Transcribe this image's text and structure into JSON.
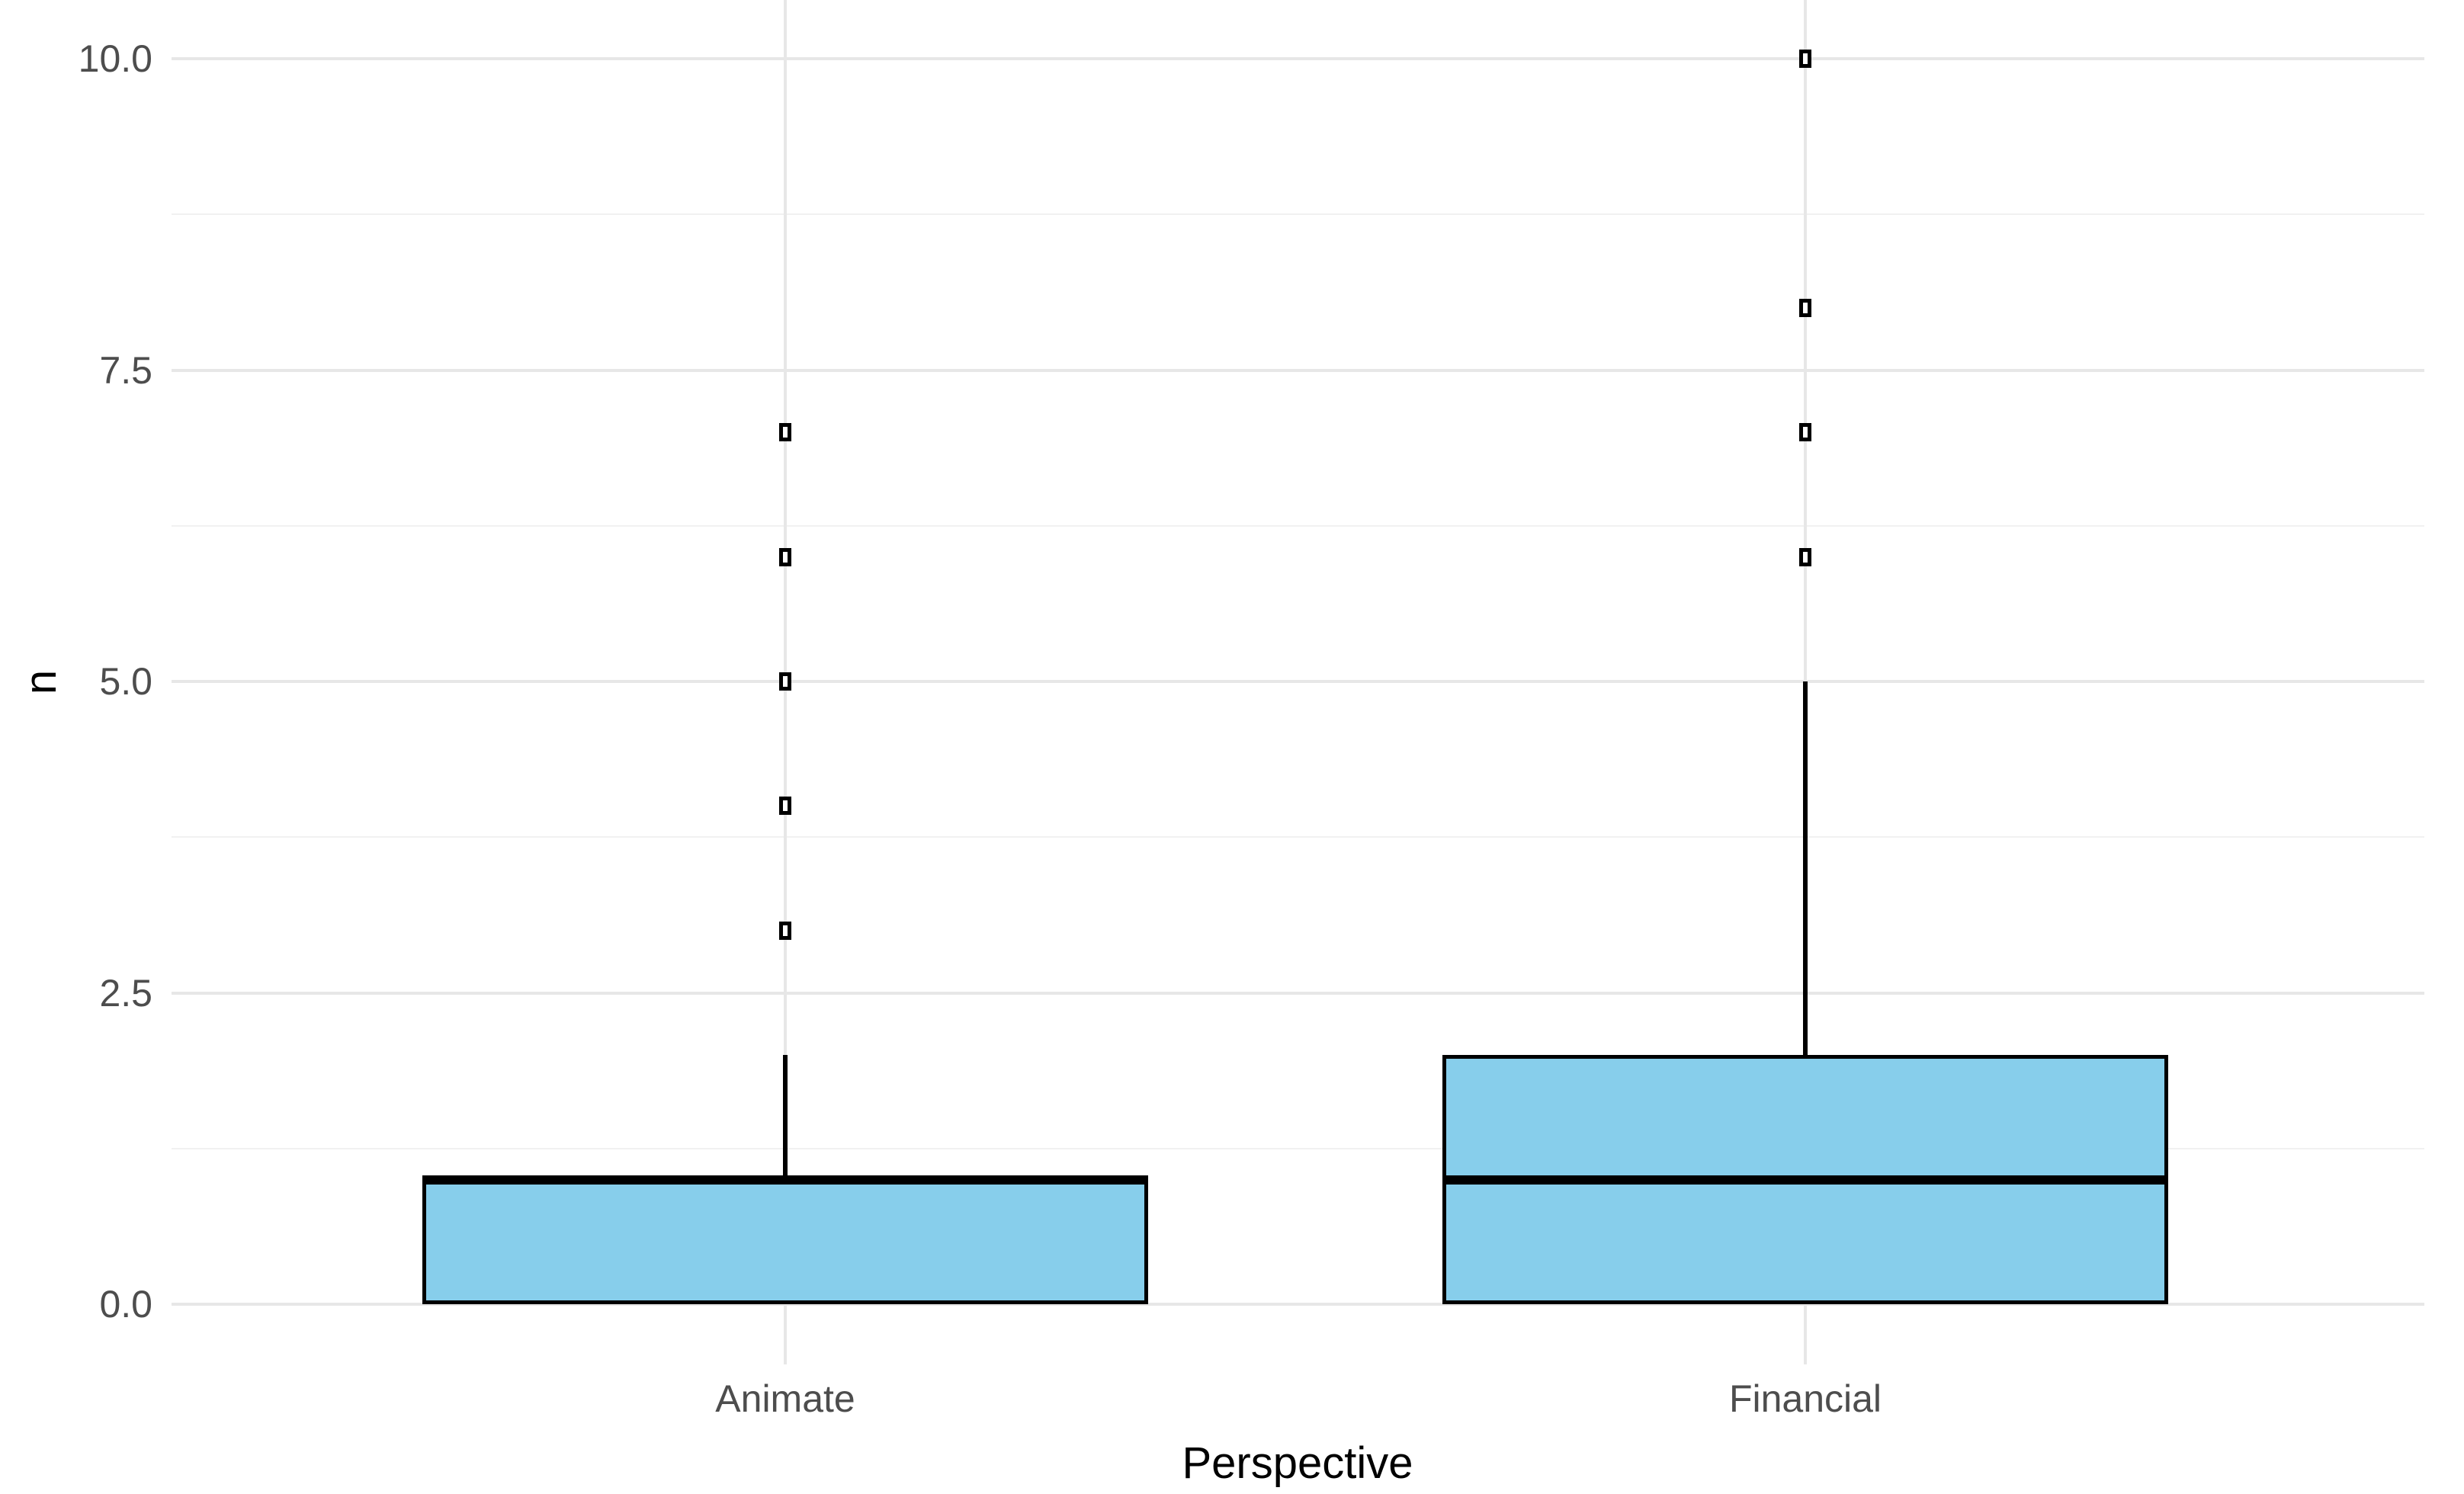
{
  "chart_data": {
    "type": "boxplot",
    "title": "",
    "xlabel": "Perspective",
    "ylabel": "n",
    "categories": [
      "Animate",
      "Financial"
    ],
    "y_axis": {
      "range_shown": [
        0,
        10
      ],
      "major_ticks": [
        0.0,
        2.5,
        5.0,
        7.5,
        10.0
      ],
      "tick_labels": [
        "0.0",
        "2.5",
        "5.0",
        "7.5",
        "10.0"
      ],
      "minor_gridlines": [
        1.25,
        3.75,
        6.25,
        8.75
      ],
      "grid": true
    },
    "series": [
      {
        "category": "Animate",
        "q1": 0,
        "median": 1,
        "q3": 1,
        "whisker_low": 0,
        "whisker_high": 2,
        "outliers": [
          3,
          4,
          5,
          6,
          7
        ]
      },
      {
        "category": "Financial",
        "q1": 0,
        "median": 1,
        "q3": 2,
        "whisker_low": 0,
        "whisker_high": 5,
        "outliers": [
          6,
          7,
          8,
          10
        ]
      }
    ],
    "style": {
      "box_fill": "#87CEEB",
      "box_border": "#000000",
      "grid_major_color": "#e7e7e7",
      "grid_minor_color": "#f1f1f1",
      "tick_label_color": "#4d4d4d",
      "axis_title_color": "#000000",
      "background": "#ffffff",
      "outlier_shape": "open-rectangle"
    }
  }
}
